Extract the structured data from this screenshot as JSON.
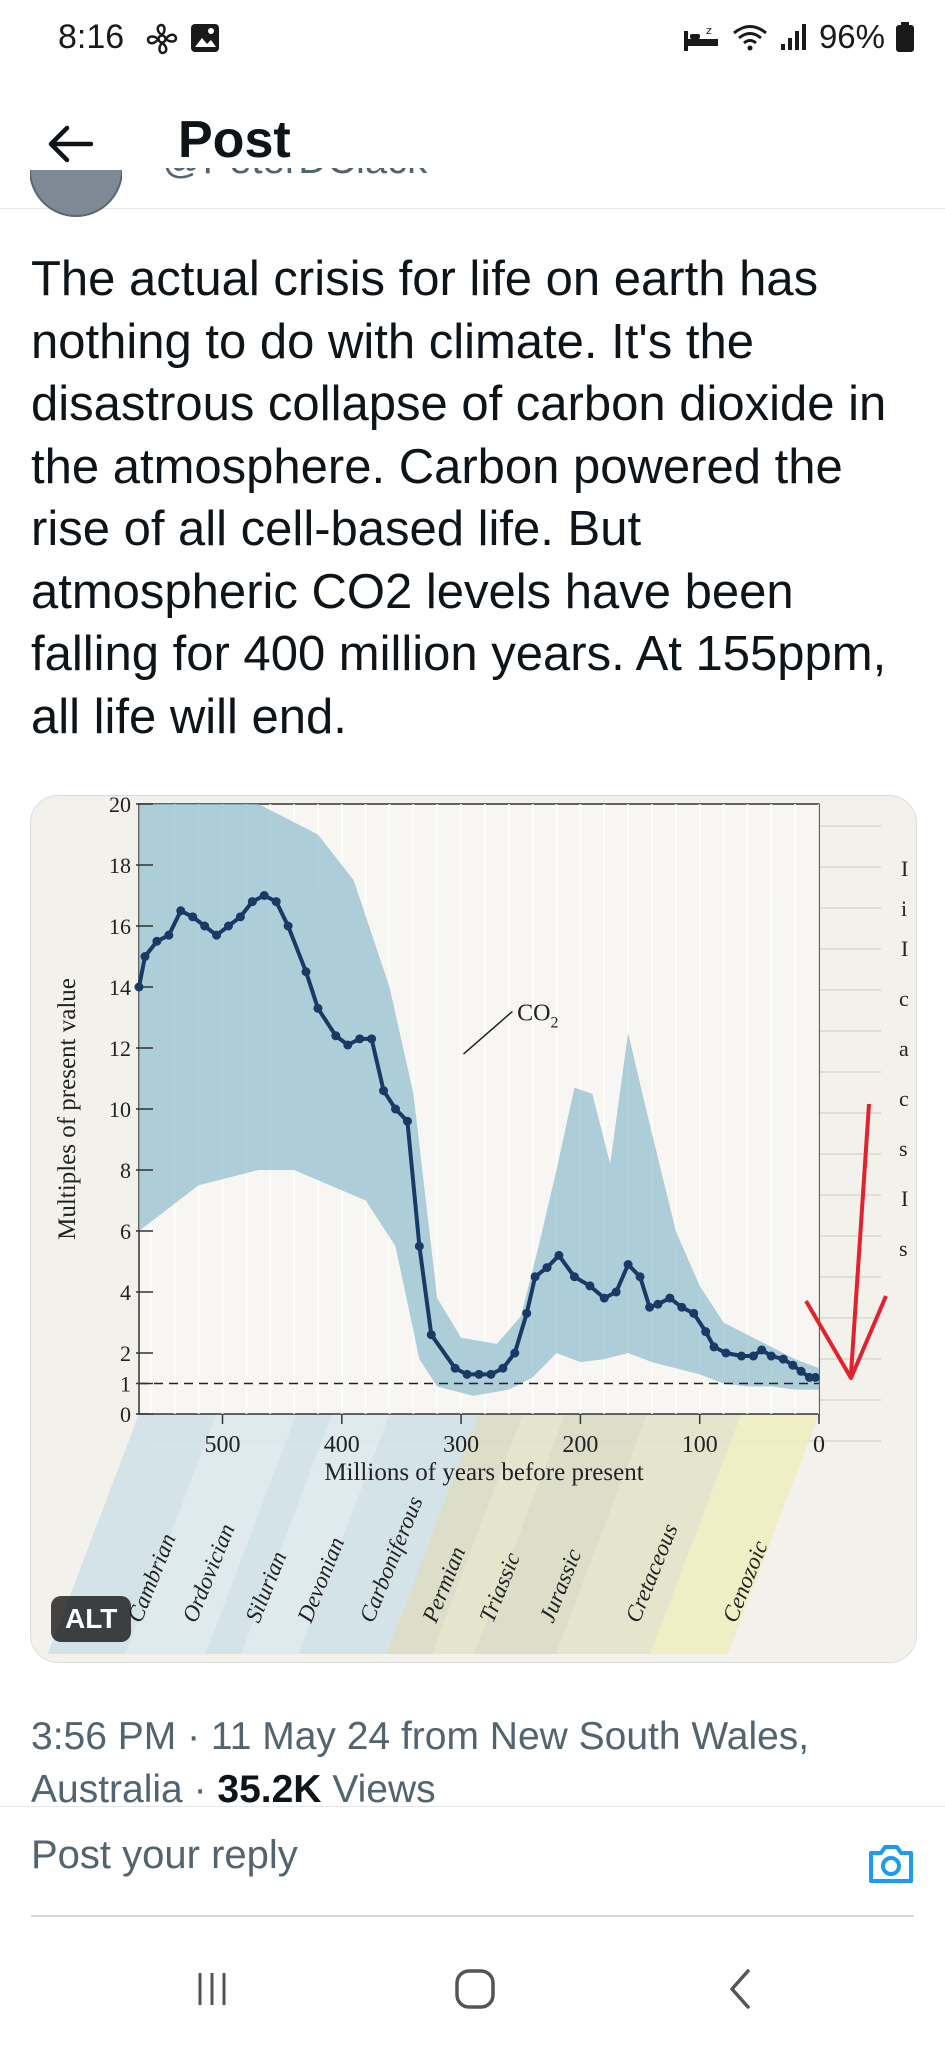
{
  "status_bar": {
    "time": "8:16",
    "battery": "96%"
  },
  "header": {
    "title": "Post"
  },
  "author": {
    "name_partial": "@PeterDClack"
  },
  "post": {
    "text": "The actual crisis for life on earth has nothing to do with climate. It's the disastrous collapse of carbon dioxide in the atmosphere. Carbon powered the rise of all cell-based life. But atmospheric CO2 levels have been falling for 400 million years. At 155ppm, all life will end."
  },
  "media": {
    "alt_label": "ALT"
  },
  "chart_data": {
    "type": "line",
    "series_label": "CO",
    "series_label_subscript": "2",
    "ylabel": "Multiples of present value",
    "xlabel": "Millions of years before present",
    "xlim": [
      570,
      0
    ],
    "ylim": [
      0,
      20
    ],
    "x_ticks": [
      500,
      400,
      300,
      200,
      100,
      0
    ],
    "y_ticks": [
      20,
      18,
      16,
      14,
      12,
      10,
      8,
      6,
      4,
      2,
      1,
      0
    ],
    "reference_line_y": 1,
    "periods": [
      "Cambrian",
      "Ordovician",
      "Silurian",
      "Devonian",
      "Carboniferous",
      "Permian",
      "Triassic",
      "Jurassic",
      "Cretaceous",
      "Cenozoic"
    ],
    "x": [
      570,
      565,
      555,
      545,
      535,
      525,
      515,
      505,
      495,
      485,
      475,
      465,
      455,
      445,
      430,
      420,
      405,
      395,
      385,
      375,
      365,
      355,
      345,
      335,
      325,
      305,
      295,
      285,
      275,
      265,
      255,
      245,
      238,
      228,
      218,
      205,
      192,
      180,
      170,
      160,
      150,
      142,
      135,
      125,
      115,
      105,
      95,
      88,
      78,
      65,
      55,
      48,
      40,
      30,
      22,
      15,
      8,
      3
    ],
    "y": [
      14,
      15,
      15.5,
      15.7,
      16.5,
      16.3,
      16,
      15.7,
      16,
      16.3,
      16.8,
      17,
      16.8,
      16,
      14.5,
      13.3,
      12.4,
      12.1,
      12.3,
      12.3,
      10.6,
      10,
      9.6,
      5.5,
      2.6,
      1.5,
      1.3,
      1.3,
      1.3,
      1.5,
      2,
      3.3,
      4.5,
      4.8,
      5.2,
      4.5,
      4.2,
      3.8,
      4,
      4.9,
      4.5,
      3.5,
      3.6,
      3.8,
      3.5,
      3.3,
      2.7,
      2.2,
      2,
      1.9,
      1.9,
      2.1,
      1.9,
      1.8,
      1.6,
      1.4,
      1.2,
      1.2
    ],
    "upper_band": [
      [
        570,
        20
      ],
      [
        530,
        20
      ],
      [
        470,
        20
      ],
      [
        420,
        19
      ],
      [
        390,
        17.5
      ],
      [
        360,
        14
      ],
      [
        340,
        10.5
      ],
      [
        320,
        3.8
      ],
      [
        300,
        2.5
      ],
      [
        270,
        2.3
      ],
      [
        250,
        3.2
      ],
      [
        235,
        5.5
      ],
      [
        220,
        8
      ],
      [
        205,
        10.7
      ],
      [
        190,
        10.5
      ],
      [
        175,
        8.2
      ],
      [
        160,
        12.5
      ],
      [
        145,
        10
      ],
      [
        120,
        6
      ],
      [
        100,
        4.2
      ],
      [
        80,
        3
      ],
      [
        60,
        2.6
      ],
      [
        40,
        2.2
      ],
      [
        20,
        1.8
      ],
      [
        0,
        1.5
      ]
    ],
    "lower_band": [
      [
        570,
        6
      ],
      [
        520,
        7.5
      ],
      [
        470,
        8
      ],
      [
        440,
        8
      ],
      [
        410,
        7.5
      ],
      [
        380,
        7
      ],
      [
        355,
        5.5
      ],
      [
        335,
        1.8
      ],
      [
        320,
        0.9
      ],
      [
        290,
        0.6
      ],
      [
        260,
        0.8
      ],
      [
        240,
        1.2
      ],
      [
        220,
        2
      ],
      [
        200,
        1.7
      ],
      [
        180,
        1.8
      ],
      [
        160,
        2
      ],
      [
        140,
        1.7
      ],
      [
        120,
        1.5
      ],
      [
        100,
        1.3
      ],
      [
        80,
        1
      ],
      [
        60,
        0.9
      ],
      [
        40,
        0.9
      ],
      [
        20,
        0.8
      ],
      [
        0,
        0.8
      ]
    ]
  }
}
